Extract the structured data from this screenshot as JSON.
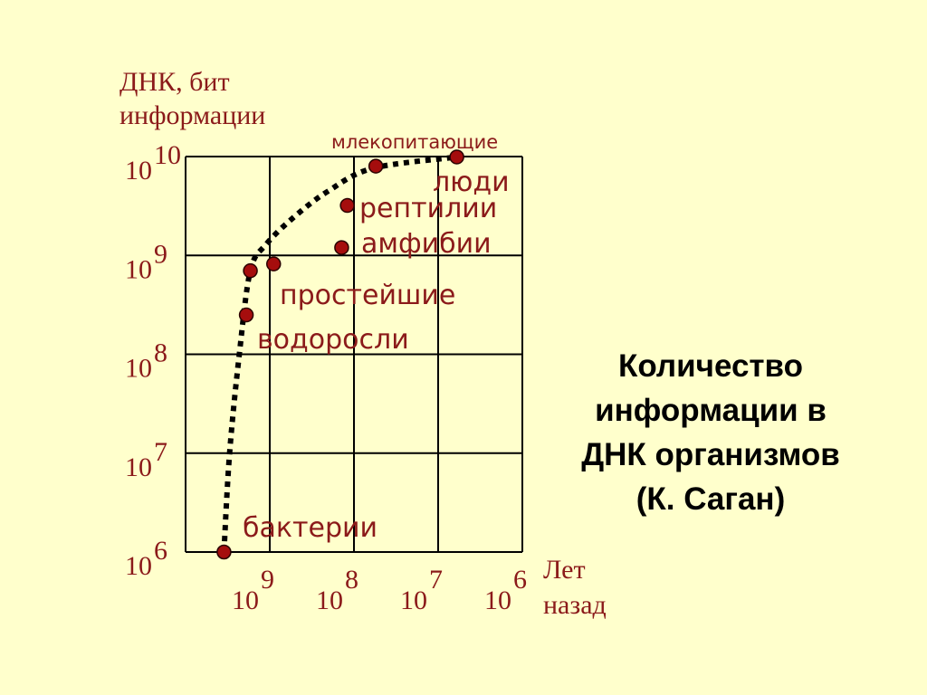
{
  "side_title": {
    "lines": [
      "Количество",
      "информации в",
      "ДНК организмов",
      "(К. Саган)"
    ]
  },
  "chart_data": {
    "type": "scatter",
    "title": "Количество информации в ДНК организмов (К. Саган)",
    "ylabel_lines": [
      "ДНК, бит",
      "информации"
    ],
    "xlabel_lines": [
      "Лет",
      "назад"
    ],
    "xscale": "log",
    "yscale": "log",
    "x_reversed": true,
    "xlim": [
      10000000000,
      1000000
    ],
    "ylim": [
      1000000,
      10000000000
    ],
    "x_ticks": [
      {
        "value": 1000000000,
        "base": "10",
        "exp": "9"
      },
      {
        "value": 100000000,
        "base": "10",
        "exp": "8"
      },
      {
        "value": 10000000,
        "base": "10",
        "exp": "7"
      },
      {
        "value": 1000000,
        "base": "10",
        "exp": "6"
      }
    ],
    "y_ticks": [
      {
        "value": 1000000,
        "base": "10",
        "exp": "6"
      },
      {
        "value": 10000000,
        "base": "10",
        "exp": "7"
      },
      {
        "value": 100000000,
        "base": "10",
        "exp": "8"
      },
      {
        "value": 1000000000,
        "base": "10",
        "exp": "9"
      },
      {
        "value": 10000000000,
        "base": "10",
        "exp": "10"
      }
    ],
    "grid": true,
    "colors": {
      "text": "#8b1a1a",
      "points": "#a50d0d",
      "curve": "#000000",
      "background": "#ffffcc"
    },
    "points": [
      {
        "label": "бактерии",
        "x": 3500000000,
        "y": 1000000
      },
      {
        "label": "водоросли",
        "x": 1900000000,
        "y": 250000000
      },
      {
        "label": "простейшие",
        "x": 1700000000,
        "y": 700000000
      },
      {
        "label": "",
        "x": 900000000,
        "y": 820000000
      },
      {
        "label": "амфибии",
        "x": 140000000,
        "y": 1200000000
      },
      {
        "label": "рептилии",
        "x": 120000000,
        "y": 3200000000
      },
      {
        "label": "люди",
        "x": 55000000,
        "y": 8000000000
      },
      {
        "label": "млекопитающие",
        "x": 6000000,
        "y": 9900000000
      }
    ],
    "curve": [
      {
        "x": 3500000000,
        "y": 1000000
      },
      {
        "x": 3000000000,
        "y": 10000000
      },
      {
        "x": 2300000000,
        "y": 100000000
      },
      {
        "x": 1700000000,
        "y": 700000000
      },
      {
        "x": 1100000000,
        "y": 1300000000
      },
      {
        "x": 500000000,
        "y": 2500000000
      },
      {
        "x": 200000000,
        "y": 4500000000
      },
      {
        "x": 60000000,
        "y": 7600000000
      },
      {
        "x": 6000000,
        "y": 9900000000
      }
    ]
  }
}
